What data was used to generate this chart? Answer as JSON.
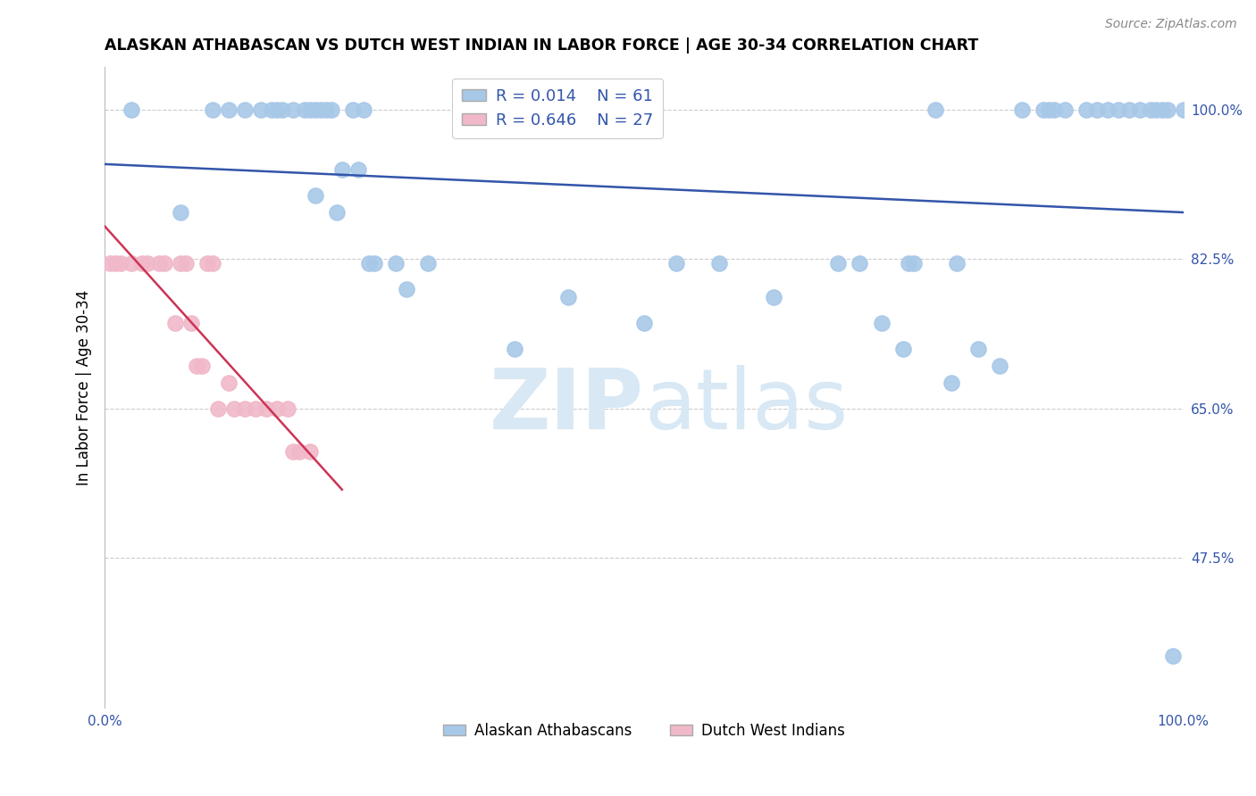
{
  "title": "ALASKAN ATHABASCAN VS DUTCH WEST INDIAN IN LABOR FORCE | AGE 30-34 CORRELATION CHART",
  "source": "Source: ZipAtlas.com",
  "ylabel": "In Labor Force | Age 30-34",
  "xlim": [
    0.0,
    1.0
  ],
  "ylim": [
    0.3,
    1.05
  ],
  "yticks": [
    0.475,
    0.65,
    0.825,
    1.0
  ],
  "ytick_labels": [
    "47.5%",
    "65.0%",
    "82.5%",
    "100.0%"
  ],
  "xticks": [
    0.0,
    1.0
  ],
  "xtick_labels": [
    "0.0%",
    "100.0%"
  ],
  "blue_R": 0.014,
  "blue_N": 61,
  "pink_R": 0.646,
  "pink_N": 27,
  "blue_color": "#a8c8e8",
  "pink_color": "#f0b8c8",
  "trend_blue": "#3355aa",
  "trend_pink": "#cc3355",
  "legend_text_color": "#3355aa",
  "watermark_color": "#d8e8f4",
  "blue_scatter_x": [
    0.025,
    0.07,
    0.1,
    0.115,
    0.13,
    0.145,
    0.155,
    0.16,
    0.165,
    0.175,
    0.185,
    0.19,
    0.195,
    0.195,
    0.2,
    0.205,
    0.21,
    0.215,
    0.22,
    0.23,
    0.235,
    0.24,
    0.245,
    0.25,
    0.27,
    0.28,
    0.3,
    0.38,
    0.43,
    0.5,
    0.53,
    0.57,
    0.62,
    0.68,
    0.7,
    0.72,
    0.74,
    0.745,
    0.75,
    0.77,
    0.785,
    0.79,
    0.81,
    0.83,
    0.85,
    0.87,
    0.875,
    0.88,
    0.89,
    0.91,
    0.92,
    0.93,
    0.94,
    0.95,
    0.96,
    0.97,
    0.975,
    0.98,
    0.985,
    0.99,
    1.0
  ],
  "blue_scatter_y": [
    1.0,
    0.88,
    1.0,
    1.0,
    1.0,
    1.0,
    1.0,
    1.0,
    1.0,
    1.0,
    1.0,
    1.0,
    1.0,
    0.9,
    1.0,
    1.0,
    1.0,
    0.88,
    0.93,
    1.0,
    0.93,
    1.0,
    0.82,
    0.82,
    0.82,
    0.79,
    0.82,
    0.72,
    0.78,
    0.75,
    0.82,
    0.82,
    0.78,
    0.82,
    0.82,
    0.75,
    0.72,
    0.82,
    0.82,
    1.0,
    0.68,
    0.82,
    0.72,
    0.7,
    1.0,
    1.0,
    1.0,
    1.0,
    1.0,
    1.0,
    1.0,
    1.0,
    1.0,
    1.0,
    1.0,
    1.0,
    1.0,
    1.0,
    1.0,
    0.36,
    1.0
  ],
  "pink_scatter_x": [
    0.005,
    0.01,
    0.015,
    0.025,
    0.035,
    0.04,
    0.05,
    0.055,
    0.065,
    0.07,
    0.075,
    0.08,
    0.085,
    0.09,
    0.095,
    0.1,
    0.105,
    0.115,
    0.12,
    0.13,
    0.14,
    0.15,
    0.16,
    0.17,
    0.175,
    0.18,
    0.19
  ],
  "pink_scatter_y": [
    0.82,
    0.82,
    0.82,
    0.82,
    0.82,
    0.82,
    0.82,
    0.82,
    0.75,
    0.82,
    0.82,
    0.75,
    0.7,
    0.7,
    0.82,
    0.82,
    0.65,
    0.68,
    0.65,
    0.65,
    0.65,
    0.65,
    0.65,
    0.65,
    0.6,
    0.6,
    0.6
  ],
  "pink_line_x": [
    0.0,
    0.22
  ],
  "pink_line_y_start": 0.95,
  "pink_line_y_end": 0.6
}
